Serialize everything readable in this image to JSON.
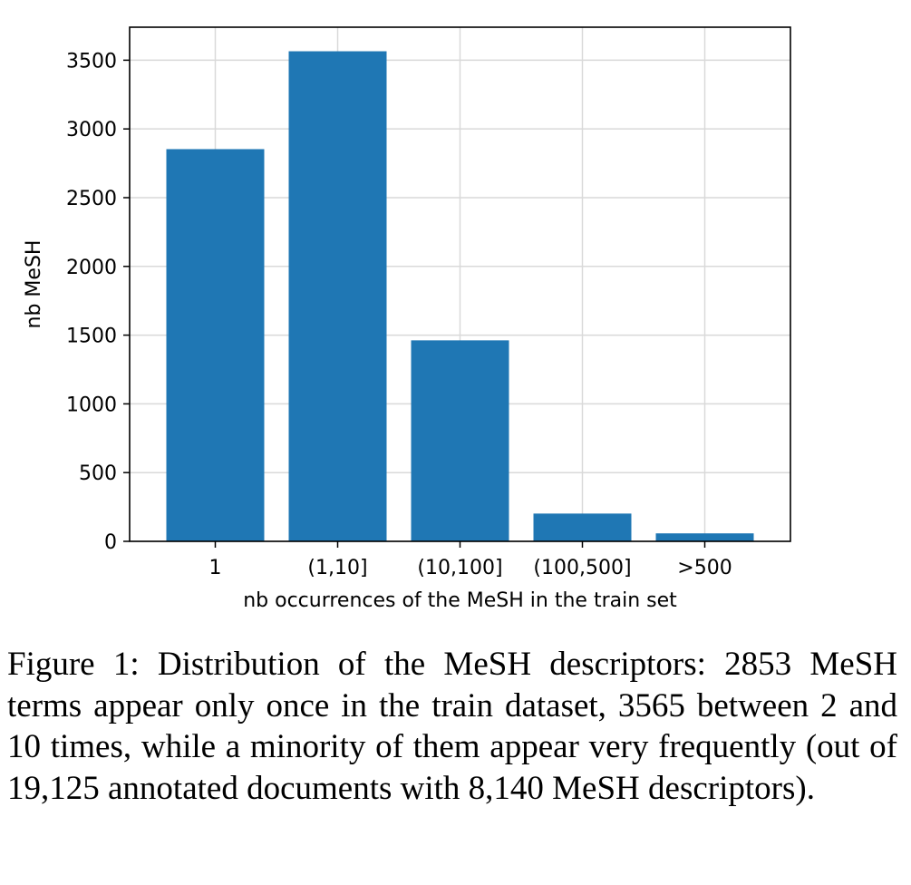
{
  "chart_data": {
    "type": "bar",
    "categories": [
      "1",
      "(1,10]",
      "(10,100]",
      "(100,500]",
      ">500"
    ],
    "values": [
      2853,
      3565,
      1462,
      202,
      58
    ],
    "xlabel": "nb occurrences of the MeSH in the train set",
    "ylabel": "nb MeSH",
    "yticks": [
      0,
      500,
      1000,
      1500,
      2000,
      2500,
      3000,
      3500
    ],
    "ylim": [
      0,
      3740
    ],
    "grid": true,
    "bar_color": "#1f77b4"
  },
  "caption": "Figure 1: Distribution of the MeSH descriptors: 2853 MeSH terms appear only once in the train dataset, 3565 between 2 and 10 times, while a minority of them appear very frequently (out of 19,125 annotated documents with 8,140 MeSH descriptors)."
}
